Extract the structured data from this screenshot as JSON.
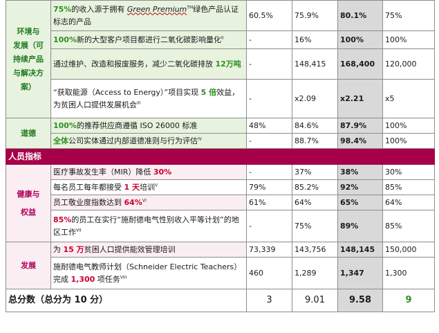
{
  "categories": {
    "env": [
      "环境与",
      "发展（可",
      "持续产品",
      "与解决方",
      "案）"
    ],
    "ethics": "道德",
    "people_section": "人员指标",
    "health": [
      "健康与",
      "权益"
    ],
    "development": "发展",
    "total_label": "总分数（总分为 10 分）"
  },
  "rows": [
    {
      "parts": [
        {
          "t": "75%",
          "c": "g"
        },
        {
          "t": "的收入源于拥有 "
        },
        {
          "t": "Green Premium",
          "c": "i"
        },
        {
          "t": "TM",
          "c": "sup"
        },
        {
          "t": "绿色产品认证标志的产品"
        }
      ],
      "v": [
        "60.5%",
        "75.9%",
        "80.1%",
        "75%"
      ]
    },
    {
      "parts": [
        {
          "t": "100%",
          "c": "g"
        },
        {
          "t": "新的大型客户项目都进行二氧化碳影响量化"
        },
        {
          "t": "II",
          "c": "sup"
        }
      ],
      "v": [
        "-",
        "16%",
        "100%",
        "100%"
      ]
    },
    {
      "parts": [
        {
          "t": "通过维护、改造和报废服务，减少二氧化碳排放 "
        },
        {
          "t": "12万吨",
          "c": "g"
        }
      ],
      "v": [
        "-",
        "148,415",
        "168,400",
        "120,000"
      ]
    },
    {
      "parts": [
        {
          "t": "“获取能源（Access to Energy）”项目实现 "
        },
        {
          "t": "5 倍",
          "c": "g"
        },
        {
          "t": "效益，为贫困人口提供发展机会"
        },
        {
          "t": "III",
          "c": "sup"
        }
      ],
      "v": [
        "-",
        "x2.09",
        "x2.21",
        "x5"
      ]
    },
    {
      "parts": [
        {
          "t": "100%",
          "c": "g"
        },
        {
          "t": "的推荐供应商遵循 ISO 26000 标准"
        }
      ],
      "v": [
        "48%",
        "84.6%",
        "87.9%",
        "100%"
      ]
    },
    {
      "parts": [
        {
          "t": "全体",
          "c": "g"
        },
        {
          "t": "公司实体通过内部道德准则与行为评估"
        },
        {
          "t": "IV",
          "c": "sup"
        }
      ],
      "v": [
        "-",
        "88.7%",
        "98.4%",
        "100%"
      ]
    },
    {
      "parts": [
        {
          "t": "医疗事故发生率（MIR）降低 "
        },
        {
          "t": "30%",
          "c": "r"
        }
      ],
      "v": [
        "-",
        "37%",
        "38%",
        "30%"
      ]
    },
    {
      "parts": [
        {
          "t": "每名员工每年都接受 "
        },
        {
          "t": "1 天",
          "c": "r"
        },
        {
          "t": "培训"
        },
        {
          "t": "V",
          "c": "sup"
        }
      ],
      "v": [
        "79%",
        "85.2%",
        "92%",
        "85%"
      ]
    },
    {
      "parts": [
        {
          "t": "员工敬业度指数达到 "
        },
        {
          "t": "64%",
          "c": "r"
        },
        {
          "t": "VI",
          "c": "sup"
        }
      ],
      "v": [
        "61%",
        "64%",
        "65%",
        "64%"
      ]
    },
    {
      "parts": [
        {
          "t": "85%",
          "c": "r"
        },
        {
          "t": "的员工在实行“施耐德电气性别收入平等计划”的地区工作"
        },
        {
          "t": "VII",
          "c": "sup"
        }
      ],
      "v": [
        "-",
        "75%",
        "89%",
        "85%"
      ]
    },
    {
      "parts": [
        {
          "t": "为 "
        },
        {
          "t": "15 万",
          "c": "r"
        },
        {
          "t": "贫困人口提供能效管理培训"
        }
      ],
      "v": [
        "73,339",
        "143,756",
        "148,145",
        "150,000"
      ]
    },
    {
      "parts": [
        {
          "t": "施耐德电气教师计划（Schneider Electric Teachers）完成 "
        },
        {
          "t": "1,300",
          "c": "r"
        },
        {
          "t": " 项任务"
        },
        {
          "t": "VIII",
          "c": "sup"
        }
      ],
      "v": [
        "460",
        "1,289",
        "1,347",
        "1,300"
      ]
    }
  ],
  "totals": [
    "3",
    "9.01",
    "9.58",
    "9"
  ],
  "colors": {
    "accent": "#a50048",
    "green_text": "#2f8f1f",
    "red_text": "#c8002d",
    "highlight_col": "#d9d9d9",
    "env_bg": "#e7f3df",
    "people_bg": "#fbeef3"
  }
}
